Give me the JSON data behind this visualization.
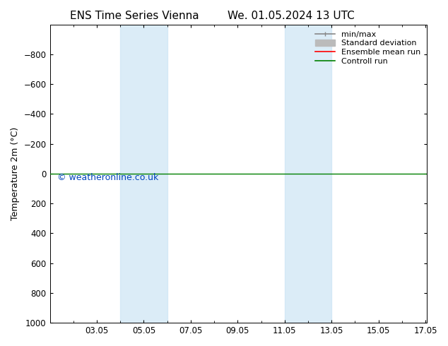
{
  "title_left": "ENS Time Series Vienna",
  "title_right": "We. 01.05.2024 13 UTC",
  "ylabel": "Temperature 2m (°C)",
  "background_color": "#ffffff",
  "plot_bg_color": "#ffffff",
  "ylim": [
    -1000,
    1000
  ],
  "yticks": [
    -800,
    -600,
    -400,
    -200,
    0,
    200,
    400,
    600,
    800,
    1000
  ],
  "xlim": [
    1.0,
    17.05
  ],
  "xtick_dates": [
    "03.05",
    "05.05",
    "07.05",
    "09.05",
    "11.05",
    "13.05",
    "15.05",
    "17.05"
  ],
  "xtick_positions": [
    3,
    5,
    7,
    9,
    11,
    13,
    15,
    17
  ],
  "shaded_bands": [
    {
      "x_start": 4.0,
      "x_end": 6.0,
      "color": "#cce4f4",
      "alpha": 0.7
    },
    {
      "x_start": 11.0,
      "x_end": 13.0,
      "color": "#cce4f4",
      "alpha": 0.7
    }
  ],
  "horizontal_line_y": 0,
  "line_green": "#008000",
  "line_red": "#ff0000",
  "watermark_text": "© weatheronline.co.uk",
  "watermark_color": "#0044bb",
  "watermark_fontsize": 9,
  "legend_entries": [
    {
      "label": "min/max",
      "color": "#888888",
      "lw": 1.2
    },
    {
      "label": "Standard deviation",
      "color": "#bbbbbb",
      "lw": 5
    },
    {
      "label": "Ensemble mean run",
      "color": "#ff0000",
      "lw": 1.2
    },
    {
      "label": "Controll run",
      "color": "#008000",
      "lw": 1.2
    }
  ],
  "title_fontsize": 11,
  "tick_fontsize": 8.5,
  "ylabel_fontsize": 9,
  "legend_fontsize": 8
}
